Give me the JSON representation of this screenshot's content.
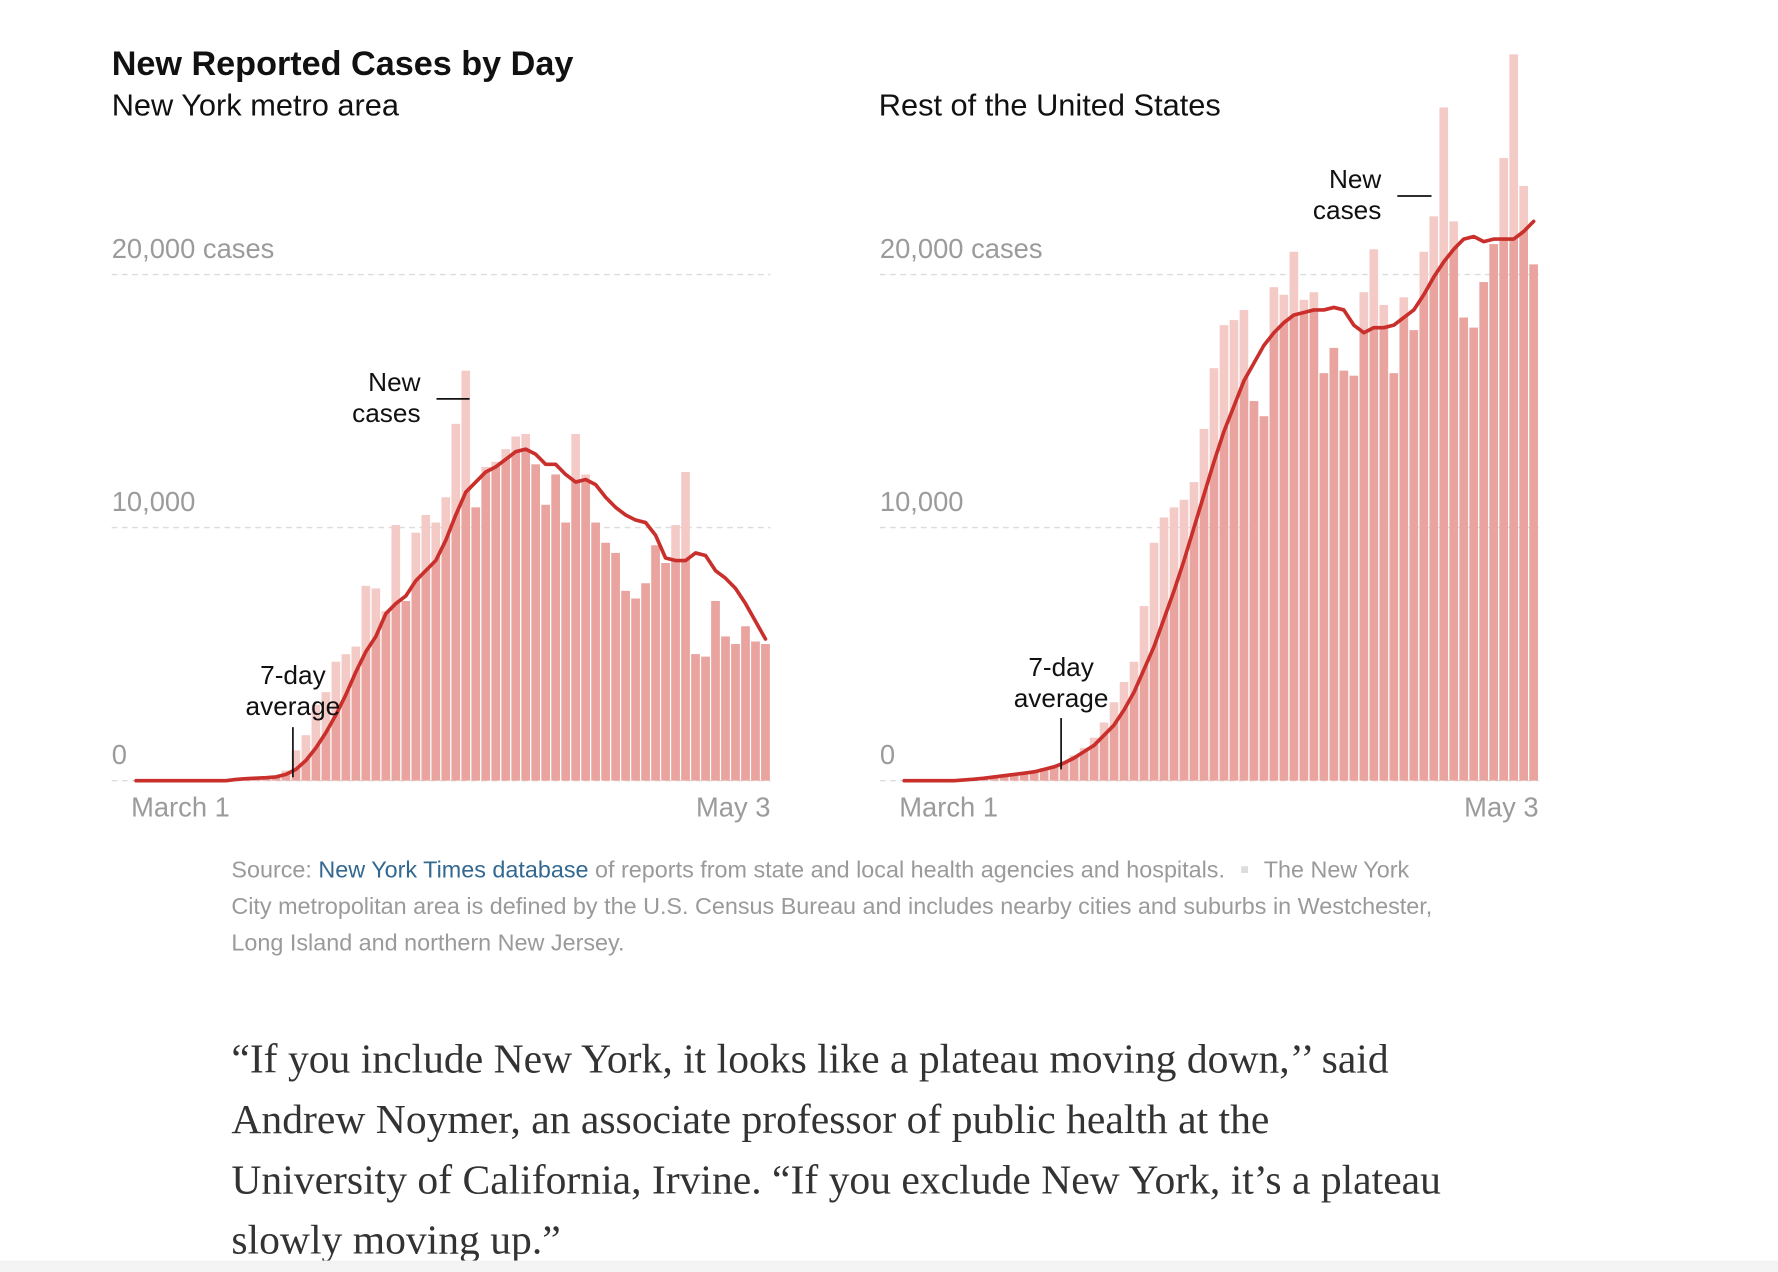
{
  "title": "New Reported Cases by Day",
  "chart_data": [
    {
      "type": "bar",
      "subtitle": "New York metro area",
      "categories": [
        "March 1",
        null,
        null,
        null,
        null,
        null,
        null,
        null,
        null,
        null,
        null,
        null,
        null,
        null,
        null,
        null,
        null,
        null,
        null,
        null,
        null,
        null,
        null,
        null,
        null,
        null,
        null,
        null,
        null,
        null,
        null,
        null,
        null,
        null,
        null,
        null,
        null,
        null,
        null,
        null,
        null,
        null,
        null,
        null,
        null,
        null,
        null,
        null,
        null,
        null,
        null,
        null,
        null,
        null,
        null,
        null,
        null,
        null,
        null,
        null,
        null,
        null,
        null,
        "May 3"
      ],
      "series": [
        {
          "name": "New cases",
          "color": "#f4cac7",
          "values": [
            0,
            0,
            0,
            0,
            0,
            0,
            0,
            0,
            20,
            30,
            60,
            100,
            120,
            150,
            200,
            400,
            1200,
            1800,
            3000,
            3500,
            4700,
            5000,
            5300,
            7700,
            7600,
            6700,
            10100,
            7100,
            9800,
            10500,
            10200,
            11200,
            14100,
            16200,
            10800,
            12400,
            12600,
            13100,
            13600,
            13700,
            12500,
            10900,
            12100,
            10200,
            13700,
            12100,
            10200,
            9400,
            9000,
            7500,
            7200,
            7800,
            9300,
            8600,
            10100,
            12200,
            5000,
            4900,
            7100,
            5700,
            5400,
            6100,
            5500,
            5400
          ]
        },
        {
          "name": "7-day average",
          "type": "line",
          "color": "#c9302c",
          "values": [
            0,
            0,
            0,
            0,
            0,
            0,
            0,
            0,
            0,
            0,
            50,
            80,
            100,
            120,
            150,
            250,
            450,
            800,
            1300,
            1900,
            2600,
            3400,
            4300,
            5100,
            5700,
            6600,
            7000,
            7300,
            7900,
            8300,
            8700,
            9500,
            10500,
            11400,
            11800,
            12200,
            12400,
            12700,
            13000,
            13100,
            12900,
            12500,
            12500,
            12100,
            11800,
            11900,
            11700,
            11200,
            10800,
            10500,
            10300,
            10200,
            9700,
            8800,
            8700,
            8700,
            9000,
            8900,
            8300,
            8000,
            7600,
            7000,
            6300,
            5600
          ]
        }
      ],
      "shade_color": "#e9a4a0",
      "ylim": [
        0,
        29000
      ],
      "yticks": [
        0,
        {
          "value": 10000,
          "label": "10,000"
        },
        {
          "value": 20000,
          "label": "20,000 cases"
        }
      ],
      "grid": true
    },
    {
      "type": "bar",
      "subtitle": "Rest of the United States",
      "categories": [
        "March 1",
        null,
        null,
        null,
        null,
        null,
        null,
        null,
        null,
        null,
        null,
        null,
        null,
        null,
        null,
        null,
        null,
        null,
        null,
        null,
        null,
        null,
        null,
        null,
        null,
        null,
        null,
        null,
        null,
        null,
        null,
        null,
        null,
        null,
        null,
        null,
        null,
        null,
        null,
        null,
        null,
        null,
        null,
        null,
        null,
        null,
        null,
        null,
        null,
        null,
        null,
        null,
        null,
        null,
        null,
        null,
        null,
        null,
        null,
        null,
        null,
        null,
        null,
        "May 3"
      ],
      "series": [
        {
          "name": "New cases",
          "color": "#f4cac7",
          "values": [
            0,
            0,
            0,
            0,
            10,
            20,
            30,
            50,
            80,
            100,
            150,
            200,
            300,
            400,
            500,
            600,
            700,
            1000,
            1300,
            1700,
            2300,
            3100,
            3900,
            4700,
            6900,
            9400,
            10400,
            10800,
            11100,
            11800,
            13900,
            16300,
            18000,
            18200,
            18600,
            15000,
            14400,
            19500,
            19200,
            20900,
            19000,
            19300,
            16100,
            17100,
            16200,
            16000,
            19300,
            21000,
            18800,
            16100,
            19100,
            17800,
            20900,
            22300,
            26600,
            22100,
            18300,
            17900,
            19700,
            21200,
            24600,
            28700,
            23500,
            20400
          ]
        },
        {
          "name": "7-day average",
          "type": "line",
          "color": "#c9302c",
          "values": [
            0,
            0,
            0,
            0,
            0,
            0,
            30,
            60,
            100,
            150,
            200,
            250,
            300,
            350,
            450,
            550,
            700,
            900,
            1150,
            1400,
            1800,
            2200,
            2800,
            3500,
            4400,
            5300,
            6400,
            7500,
            8700,
            10000,
            11300,
            12600,
            13800,
            14800,
            15800,
            16500,
            17200,
            17700,
            18100,
            18400,
            18500,
            18600,
            18600,
            18700,
            18600,
            18000,
            17700,
            17900,
            17900,
            18000,
            18300,
            18600,
            19200,
            19900,
            20500,
            21000,
            21400,
            21500,
            21300,
            21400,
            21400,
            21400,
            21700,
            22100
          ]
        }
      ],
      "shade_color": "#e9a4a0",
      "ylim": [
        0,
        29000
      ],
      "yticks": [
        0,
        {
          "value": 10000,
          "label": "10,000"
        },
        {
          "value": 20000,
          "label": "20,000 cases"
        }
      ],
      "grid": true
    }
  ],
  "source": {
    "prefix": "Source:",
    "link": "New York Times database",
    "text": "of reports from state and local health agencies and hospitals.",
    "note": "The New York City metropolitan area is defined by the U.S. Census Bureau and includes nearby cities and suburbs in Westchester, Long Island and northern New Jersey."
  },
  "quote": "“If you include New York, it looks like a plateau moving down,’’ said Andrew Noymer, an associate professor of public health at the University of California, Irvine. “If you exclude New York, it’s a plateau slowly moving up.”"
}
